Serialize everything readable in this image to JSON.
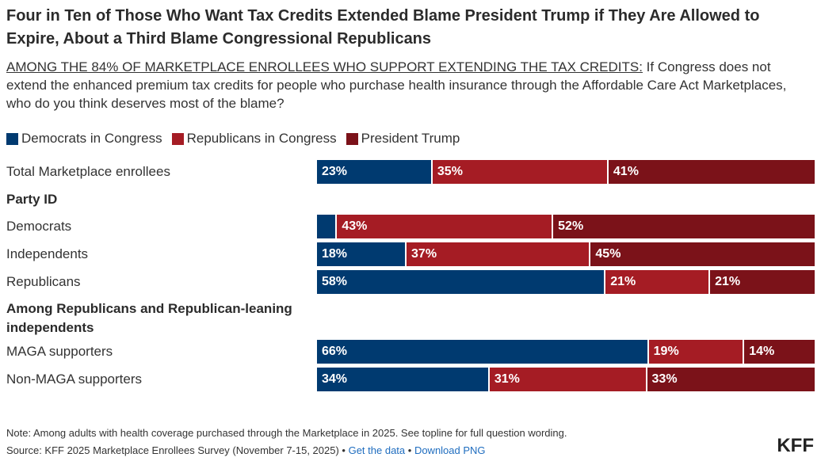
{
  "title": "Four in Ten of Those Who Want Tax Credits Extended Blame President Trump if They Are Allowed to Expire, About a Third Blame Congressional Republicans",
  "subtitle_lead": "AMONG THE 84% OF MARKETPLACE ENROLLEES WHO SUPPORT EXTENDING THE TAX CREDITS:",
  "subtitle_rest": " If Congress does not extend the enhanced premium tax credits for people who purchase health insurance through the Affordable Care Act Marketplaces, who do you think deserves most of the blame?",
  "legend": [
    {
      "label": "Democrats in Congress",
      "color": "#003a70"
    },
    {
      "label": "Republicans in Congress",
      "color": "#a51c24"
    },
    {
      "label": "President Trump",
      "color": "#7b1219"
    }
  ],
  "chart_data": {
    "type": "bar",
    "orientation": "horizontal-stacked",
    "series_names": [
      "Democrats in Congress",
      "Republicans in Congress",
      "President Trump"
    ],
    "rows": [
      {
        "kind": "row",
        "label": "Total Marketplace enrollees",
        "values": [
          23,
          35,
          41
        ],
        "labels": [
          "23%",
          "35%",
          "41%"
        ]
      },
      {
        "kind": "group",
        "label": "Party ID"
      },
      {
        "kind": "row",
        "label": "Democrats",
        "values": [
          4,
          43,
          52
        ],
        "labels": [
          "",
          "43%",
          "52%"
        ]
      },
      {
        "kind": "row",
        "label": "Independents",
        "values": [
          18,
          37,
          45
        ],
        "labels": [
          "18%",
          "37%",
          "45%"
        ]
      },
      {
        "kind": "row",
        "label": "Republicans",
        "values": [
          58,
          21,
          21
        ],
        "labels": [
          "58%",
          "21%",
          "21%"
        ]
      },
      {
        "kind": "group",
        "label": "Among Republicans and Republican-leaning independents"
      },
      {
        "kind": "row",
        "label": "MAGA supporters",
        "values": [
          66,
          19,
          14
        ],
        "labels": [
          "66%",
          "19%",
          "14%"
        ]
      },
      {
        "kind": "row",
        "label": "Non-MAGA supporters",
        "values": [
          34,
          31,
          33
        ],
        "labels": [
          "34%",
          "31%",
          "33%"
        ]
      }
    ],
    "xlim": [
      0,
      100
    ]
  },
  "note": "Note: Among adults with health coverage purchased through the Marketplace in 2025. See topline for full question wording.",
  "source": "Source: KFF 2025 Marketplace Enrollees Survey (November 7-15, 2025)",
  "source_sep": " • ",
  "link_data": "Get the data",
  "link_png": "Download PNG",
  "logo": "KFF"
}
